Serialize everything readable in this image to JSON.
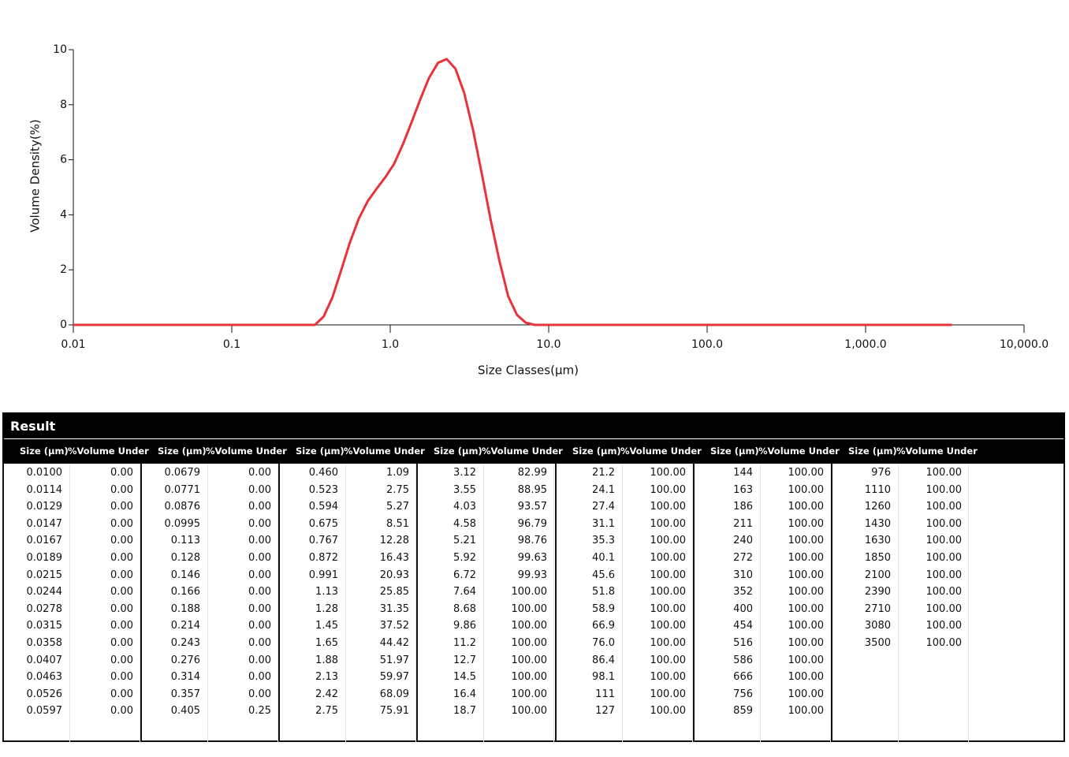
{
  "chart_data": {
    "type": "line",
    "x_label": "Size Classes(µm)",
    "y_label": "Volume Density(%)",
    "xscale": "log",
    "color": "#e8323c",
    "xlim": [
      0.01,
      10000
    ],
    "xticks": [
      0.01,
      0.1,
      {
        "value": 1,
        "label": "1.0"
      },
      {
        "value": 10,
        "label": "10.0"
      },
      {
        "value": 100,
        "label": "100.0"
      },
      {
        "value": 1000,
        "label": "1,000.0"
      },
      {
        "value": 10000,
        "label": "10,000.0"
      }
    ],
    "ylim": [
      0,
      10
    ],
    "yticks": [
      0,
      2,
      4,
      6,
      8,
      10
    ],
    "x": [
      0.01,
      0.335,
      0.38,
      0.432,
      0.49,
      0.557,
      0.633,
      0.72,
      0.818,
      0.93,
      1.058,
      1.2,
      1.36,
      1.55,
      1.76,
      2.0,
      2.27,
      2.58,
      2.93,
      3.33,
      3.78,
      4.3,
      4.88,
      5.55,
      6.31,
      7.17,
      8.15,
      3500
    ],
    "values": [
      0,
      0,
      0.3,
      1.0,
      1.98,
      3.0,
      3.86,
      4.49,
      4.94,
      5.36,
      5.85,
      6.55,
      7.34,
      8.21,
      8.98,
      9.52,
      9.66,
      9.31,
      8.43,
      7.09,
      5.5,
      3.83,
      2.34,
      1.04,
      0.36,
      0.08,
      0,
      0
    ]
  },
  "table": {
    "title": "Result",
    "columns": [
      "Size (µm)",
      "%Volume Under"
    ],
    "groups": [
      {
        "rows": [
          [
            "0.0100",
            "0.00"
          ],
          [
            "0.0114",
            "0.00"
          ],
          [
            "0.0129",
            "0.00"
          ],
          [
            "0.0147",
            "0.00"
          ],
          [
            "0.0167",
            "0.00"
          ],
          [
            "0.0189",
            "0.00"
          ],
          [
            "0.0215",
            "0.00"
          ],
          [
            "0.0244",
            "0.00"
          ],
          [
            "0.0278",
            "0.00"
          ],
          [
            "0.0315",
            "0.00"
          ],
          [
            "0.0358",
            "0.00"
          ],
          [
            "0.0407",
            "0.00"
          ],
          [
            "0.0463",
            "0.00"
          ],
          [
            "0.0526",
            "0.00"
          ],
          [
            "0.0597",
            "0.00"
          ]
        ]
      },
      {
        "rows": [
          [
            "0.0679",
            "0.00"
          ],
          [
            "0.0771",
            "0.00"
          ],
          [
            "0.0876",
            "0.00"
          ],
          [
            "0.0995",
            "0.00"
          ],
          [
            "0.113",
            "0.00"
          ],
          [
            "0.128",
            "0.00"
          ],
          [
            "0.146",
            "0.00"
          ],
          [
            "0.166",
            "0.00"
          ],
          [
            "0.188",
            "0.00"
          ],
          [
            "0.214",
            "0.00"
          ],
          [
            "0.243",
            "0.00"
          ],
          [
            "0.276",
            "0.00"
          ],
          [
            "0.314",
            "0.00"
          ],
          [
            "0.357",
            "0.00"
          ],
          [
            "0.405",
            "0.25"
          ]
        ]
      },
      {
        "rows": [
          [
            "0.460",
            "1.09"
          ],
          [
            "0.523",
            "2.75"
          ],
          [
            "0.594",
            "5.27"
          ],
          [
            "0.675",
            "8.51"
          ],
          [
            "0.767",
            "12.28"
          ],
          [
            "0.872",
            "16.43"
          ],
          [
            "0.991",
            "20.93"
          ],
          [
            "1.13",
            "25.85"
          ],
          [
            "1.28",
            "31.35"
          ],
          [
            "1.45",
            "37.52"
          ],
          [
            "1.65",
            "44.42"
          ],
          [
            "1.88",
            "51.97"
          ],
          [
            "2.13",
            "59.97"
          ],
          [
            "2.42",
            "68.09"
          ],
          [
            "2.75",
            "75.91"
          ]
        ]
      },
      {
        "rows": [
          [
            "3.12",
            "82.99"
          ],
          [
            "3.55",
            "88.95"
          ],
          [
            "4.03",
            "93.57"
          ],
          [
            "4.58",
            "96.79"
          ],
          [
            "5.21",
            "98.76"
          ],
          [
            "5.92",
            "99.63"
          ],
          [
            "6.72",
            "99.93"
          ],
          [
            "7.64",
            "100.00"
          ],
          [
            "8.68",
            "100.00"
          ],
          [
            "9.86",
            "100.00"
          ],
          [
            "11.2",
            "100.00"
          ],
          [
            "12.7",
            "100.00"
          ],
          [
            "14.5",
            "100.00"
          ],
          [
            "16.4",
            "100.00"
          ],
          [
            "18.7",
            "100.00"
          ]
        ]
      },
      {
        "rows": [
          [
            "21.2",
            "100.00"
          ],
          [
            "24.1",
            "100.00"
          ],
          [
            "27.4",
            "100.00"
          ],
          [
            "31.1",
            "100.00"
          ],
          [
            "35.3",
            "100.00"
          ],
          [
            "40.1",
            "100.00"
          ],
          [
            "45.6",
            "100.00"
          ],
          [
            "51.8",
            "100.00"
          ],
          [
            "58.9",
            "100.00"
          ],
          [
            "66.9",
            "100.00"
          ],
          [
            "76.0",
            "100.00"
          ],
          [
            "86.4",
            "100.00"
          ],
          [
            "98.1",
            "100.00"
          ],
          [
            "111",
            "100.00"
          ],
          [
            "127",
            "100.00"
          ]
        ]
      },
      {
        "rows": [
          [
            "144",
            "100.00"
          ],
          [
            "163",
            "100.00"
          ],
          [
            "186",
            "100.00"
          ],
          [
            "211",
            "100.00"
          ],
          [
            "240",
            "100.00"
          ],
          [
            "272",
            "100.00"
          ],
          [
            "310",
            "100.00"
          ],
          [
            "352",
            "100.00"
          ],
          [
            "400",
            "100.00"
          ],
          [
            "454",
            "100.00"
          ],
          [
            "516",
            "100.00"
          ],
          [
            "586",
            "100.00"
          ],
          [
            "666",
            "100.00"
          ],
          [
            "756",
            "100.00"
          ],
          [
            "859",
            "100.00"
          ]
        ]
      },
      {
        "rows": [
          [
            "976",
            "100.00"
          ],
          [
            "1110",
            "100.00"
          ],
          [
            "1260",
            "100.00"
          ],
          [
            "1430",
            "100.00"
          ],
          [
            "1630",
            "100.00"
          ],
          [
            "1850",
            "100.00"
          ],
          [
            "2100",
            "100.00"
          ],
          [
            "2390",
            "100.00"
          ],
          [
            "2710",
            "100.00"
          ],
          [
            "3080",
            "100.00"
          ],
          [
            "3500",
            "100.00"
          ]
        ]
      }
    ]
  }
}
